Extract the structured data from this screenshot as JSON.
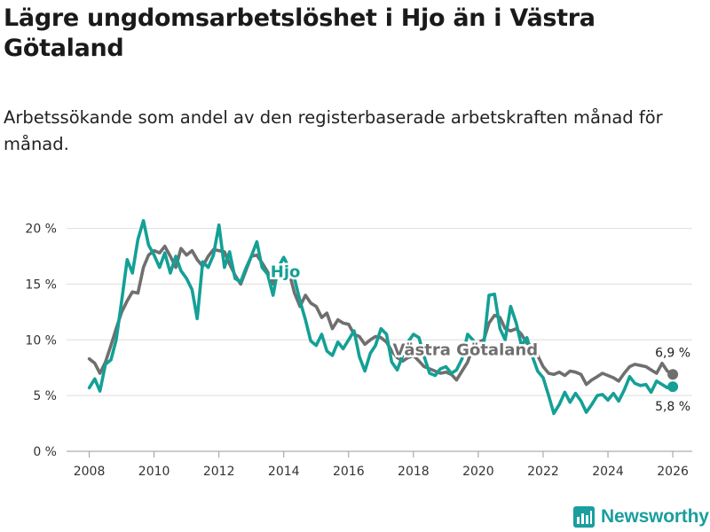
{
  "header": {
    "title": "Lägre ungdomsarbetslöshet i Hjo än i Västra Götaland",
    "subtitle": "Arbetssökande som andel av den registerbaserade arbetskraften månad för månad."
  },
  "brand": {
    "name": "Newsworthy",
    "icon": "bar-chart-logo-icon"
  },
  "chart_data": {
    "type": "line",
    "title": "Lägre ungdomsarbetslöshet i Hjo än i Västra Götaland",
    "xlabel": "",
    "ylabel": "",
    "xlim": [
      2007.3,
      2026.6
    ],
    "ylim": [
      0,
      21
    ],
    "grid": true,
    "x_ticks": [
      2008,
      2010,
      2012,
      2014,
      2016,
      2018,
      2020,
      2022,
      2024,
      2026
    ],
    "x_tick_labels": [
      "2008",
      "2010",
      "2012",
      "2014",
      "2016",
      "2018",
      "2020",
      "2022",
      "2024",
      "2026"
    ],
    "y_ticks": [
      0,
      5,
      10,
      15,
      20
    ],
    "y_tick_labels": [
      "0 %",
      "5 %",
      "10 %",
      "15 %",
      "20 %"
    ],
    "series": [
      {
        "name": "Västra Götaland",
        "color": "#6f6f6f",
        "end_label": "6,9 %",
        "points": [
          [
            2008.0,
            8.3
          ],
          [
            2008.17,
            7.9
          ],
          [
            2008.33,
            7.0
          ],
          [
            2008.5,
            8.0
          ],
          [
            2008.67,
            9.5
          ],
          [
            2008.83,
            11.0
          ],
          [
            2009.0,
            12.5
          ],
          [
            2009.17,
            13.5
          ],
          [
            2009.33,
            14.3
          ],
          [
            2009.5,
            14.2
          ],
          [
            2009.67,
            16.5
          ],
          [
            2009.83,
            17.6
          ],
          [
            2010.0,
            18.0
          ],
          [
            2010.17,
            17.8
          ],
          [
            2010.33,
            18.4
          ],
          [
            2010.5,
            17.5
          ],
          [
            2010.67,
            16.5
          ],
          [
            2010.83,
            18.2
          ],
          [
            2011.0,
            17.6
          ],
          [
            2011.17,
            18.0
          ],
          [
            2011.33,
            17.2
          ],
          [
            2011.5,
            16.6
          ],
          [
            2011.67,
            17.5
          ],
          [
            2011.83,
            18.1
          ],
          [
            2012.0,
            18.0
          ],
          [
            2012.17,
            17.9
          ],
          [
            2012.33,
            16.8
          ],
          [
            2012.5,
            15.8
          ],
          [
            2012.67,
            15.0
          ],
          [
            2012.83,
            16.2
          ],
          [
            2013.0,
            17.5
          ],
          [
            2013.17,
            17.6
          ],
          [
            2013.33,
            16.9
          ],
          [
            2013.5,
            16.1
          ],
          [
            2013.67,
            15.0
          ],
          [
            2013.83,
            16.6
          ],
          [
            2014.0,
            16.3
          ],
          [
            2014.17,
            16.0
          ],
          [
            2014.33,
            14.2
          ],
          [
            2014.5,
            13.0
          ],
          [
            2014.67,
            14.0
          ],
          [
            2014.83,
            13.3
          ],
          [
            2015.0,
            13.0
          ],
          [
            2015.17,
            12.0
          ],
          [
            2015.33,
            12.4
          ],
          [
            2015.5,
            11.0
          ],
          [
            2015.67,
            11.8
          ],
          [
            2015.83,
            11.5
          ],
          [
            2016.0,
            11.4
          ],
          [
            2016.17,
            10.5
          ],
          [
            2016.33,
            10.3
          ],
          [
            2016.5,
            9.6
          ],
          [
            2016.67,
            10.0
          ],
          [
            2016.83,
            10.3
          ],
          [
            2017.0,
            10.2
          ],
          [
            2017.17,
            9.8
          ],
          [
            2017.33,
            9.0
          ],
          [
            2017.5,
            8.4
          ],
          [
            2017.67,
            8.1
          ],
          [
            2017.83,
            8.4
          ],
          [
            2018.0,
            8.6
          ],
          [
            2018.17,
            8.1
          ],
          [
            2018.33,
            7.6
          ],
          [
            2018.5,
            7.4
          ],
          [
            2018.67,
            7.2
          ],
          [
            2018.83,
            7.0
          ],
          [
            2019.0,
            7.1
          ],
          [
            2019.17,
            6.9
          ],
          [
            2019.33,
            6.4
          ],
          [
            2019.5,
            7.2
          ],
          [
            2019.67,
            8.0
          ],
          [
            2019.83,
            9.3
          ],
          [
            2020.0,
            9.8
          ],
          [
            2020.17,
            10.0
          ],
          [
            2020.33,
            11.5
          ],
          [
            2020.5,
            12.2
          ],
          [
            2020.67,
            12.0
          ],
          [
            2020.83,
            11.0
          ],
          [
            2021.0,
            10.8
          ],
          [
            2021.17,
            11.0
          ],
          [
            2021.33,
            10.5
          ],
          [
            2021.5,
            9.7
          ],
          [
            2021.67,
            9.4
          ],
          [
            2021.83,
            8.6
          ],
          [
            2022.0,
            7.6
          ],
          [
            2022.17,
            7.0
          ],
          [
            2022.33,
            6.9
          ],
          [
            2022.5,
            7.1
          ],
          [
            2022.67,
            6.8
          ],
          [
            2022.83,
            7.2
          ],
          [
            2023.0,
            7.1
          ],
          [
            2023.17,
            6.9
          ],
          [
            2023.33,
            6.0
          ],
          [
            2023.5,
            6.4
          ],
          [
            2023.67,
            6.7
          ],
          [
            2023.83,
            7.0
          ],
          [
            2024.0,
            6.8
          ],
          [
            2024.17,
            6.6
          ],
          [
            2024.33,
            6.3
          ],
          [
            2024.5,
            7.0
          ],
          [
            2024.67,
            7.6
          ],
          [
            2024.83,
            7.8
          ],
          [
            2025.0,
            7.7
          ],
          [
            2025.17,
            7.6
          ],
          [
            2025.33,
            7.3
          ],
          [
            2025.5,
            7.0
          ],
          [
            2025.67,
            7.9
          ],
          [
            2025.83,
            7.2
          ],
          [
            2026.0,
            6.9
          ]
        ]
      },
      {
        "name": "Hjo",
        "color": "#14a096",
        "end_label": "5,8 %",
        "points": [
          [
            2008.0,
            5.7
          ],
          [
            2008.17,
            6.5
          ],
          [
            2008.33,
            5.4
          ],
          [
            2008.5,
            7.8
          ],
          [
            2008.67,
            8.2
          ],
          [
            2008.83,
            10.0
          ],
          [
            2009.0,
            13.5
          ],
          [
            2009.17,
            17.2
          ],
          [
            2009.33,
            16.0
          ],
          [
            2009.5,
            19.0
          ],
          [
            2009.67,
            20.7
          ],
          [
            2009.83,
            18.5
          ],
          [
            2010.0,
            17.6
          ],
          [
            2010.17,
            16.5
          ],
          [
            2010.33,
            17.8
          ],
          [
            2010.5,
            16.0
          ],
          [
            2010.67,
            17.5
          ],
          [
            2010.83,
            16.2
          ],
          [
            2011.0,
            15.5
          ],
          [
            2011.17,
            14.5
          ],
          [
            2011.33,
            11.9
          ],
          [
            2011.5,
            17.0
          ],
          [
            2011.67,
            16.5
          ],
          [
            2011.83,
            17.6
          ],
          [
            2012.0,
            20.3
          ],
          [
            2012.17,
            16.5
          ],
          [
            2012.33,
            17.9
          ],
          [
            2012.5,
            15.5
          ],
          [
            2012.67,
            15.2
          ],
          [
            2012.83,
            16.4
          ],
          [
            2013.0,
            17.5
          ],
          [
            2013.17,
            18.8
          ],
          [
            2013.33,
            16.5
          ],
          [
            2013.5,
            15.9
          ],
          [
            2013.67,
            14.0
          ],
          [
            2013.83,
            16.5
          ],
          [
            2014.0,
            17.4
          ],
          [
            2014.17,
            16.4
          ],
          [
            2014.33,
            15.5
          ],
          [
            2014.5,
            13.5
          ],
          [
            2014.67,
            11.8
          ],
          [
            2014.83,
            9.9
          ],
          [
            2015.0,
            9.5
          ],
          [
            2015.17,
            10.5
          ],
          [
            2015.33,
            9.0
          ],
          [
            2015.5,
            8.6
          ],
          [
            2015.67,
            9.8
          ],
          [
            2015.83,
            9.2
          ],
          [
            2016.0,
            10.0
          ],
          [
            2016.17,
            10.8
          ],
          [
            2016.33,
            8.5
          ],
          [
            2016.5,
            7.2
          ],
          [
            2016.67,
            8.8
          ],
          [
            2016.83,
            9.5
          ],
          [
            2017.0,
            11.0
          ],
          [
            2017.17,
            10.5
          ],
          [
            2017.33,
            8.0
          ],
          [
            2017.5,
            7.3
          ],
          [
            2017.67,
            8.6
          ],
          [
            2017.83,
            9.8
          ],
          [
            2018.0,
            10.5
          ],
          [
            2018.17,
            10.2
          ],
          [
            2018.33,
            8.5
          ],
          [
            2018.5,
            7.0
          ],
          [
            2018.67,
            6.8
          ],
          [
            2018.83,
            7.4
          ],
          [
            2019.0,
            7.6
          ],
          [
            2019.17,
            7.0
          ],
          [
            2019.33,
            7.3
          ],
          [
            2019.5,
            8.3
          ],
          [
            2019.67,
            10.5
          ],
          [
            2019.83,
            10.0
          ],
          [
            2020.0,
            9.3
          ],
          [
            2020.17,
            9.6
          ],
          [
            2020.33,
            14.0
          ],
          [
            2020.5,
            14.1
          ],
          [
            2020.67,
            11.0
          ],
          [
            2020.83,
            10.0
          ],
          [
            2021.0,
            13.0
          ],
          [
            2021.17,
            11.5
          ],
          [
            2021.33,
            9.5
          ],
          [
            2021.5,
            10.2
          ],
          [
            2021.67,
            8.5
          ],
          [
            2021.83,
            7.2
          ],
          [
            2022.0,
            6.6
          ],
          [
            2022.17,
            5.0
          ],
          [
            2022.33,
            3.4
          ],
          [
            2022.5,
            4.2
          ],
          [
            2022.67,
            5.3
          ],
          [
            2022.83,
            4.4
          ],
          [
            2023.0,
            5.2
          ],
          [
            2023.17,
            4.5
          ],
          [
            2023.33,
            3.5
          ],
          [
            2023.5,
            4.2
          ],
          [
            2023.67,
            5.0
          ],
          [
            2023.83,
            5.1
          ],
          [
            2024.0,
            4.6
          ],
          [
            2024.17,
            5.2
          ],
          [
            2024.33,
            4.5
          ],
          [
            2024.5,
            5.5
          ],
          [
            2024.67,
            6.7
          ],
          [
            2024.83,
            6.1
          ],
          [
            2025.0,
            5.9
          ],
          [
            2025.17,
            6.0
          ],
          [
            2025.33,
            5.3
          ],
          [
            2025.5,
            6.3
          ],
          [
            2025.67,
            6.0
          ],
          [
            2025.83,
            5.7
          ],
          [
            2026.0,
            5.8
          ]
        ]
      }
    ],
    "annotations": [
      {
        "text": "Hjo",
        "series": "Hjo"
      },
      {
        "text": "Västra Götaland",
        "series": "Västra Götaland"
      }
    ]
  }
}
